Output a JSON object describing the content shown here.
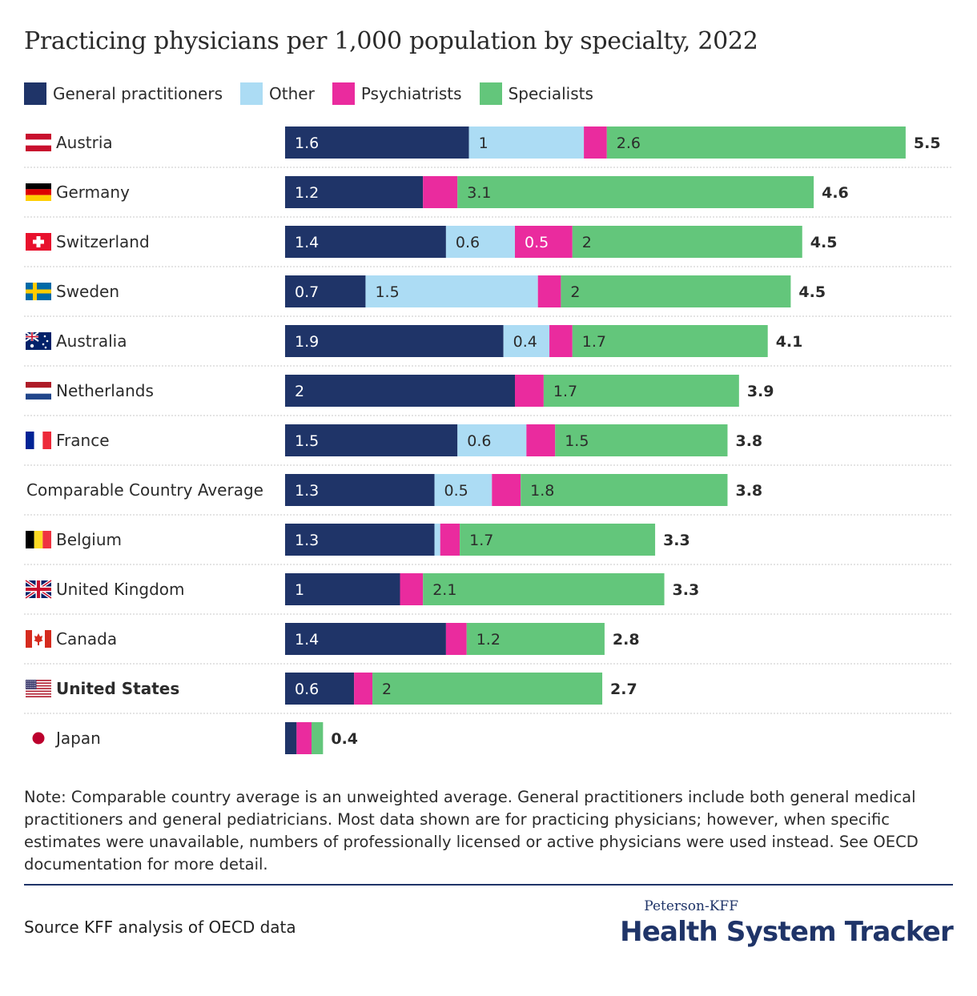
{
  "title": "Practicing physicians per 1,000 population by specialty, 2022",
  "legend": [
    {
      "label": "General practitioners",
      "color": "#1f3468"
    },
    {
      "label": "Other",
      "color": "#acdcf4"
    },
    {
      "label": "Psychiatrists",
      "color": "#ea2b9e"
    },
    {
      "label": "Specialists",
      "color": "#63c67b"
    }
  ],
  "note": "Note: Comparable country average is an unweighted average. General practitioners include both general medical practitioners and general pediatricians. Most data shown are for practicing physicians; however, when specific estimates were unavailable, numbers of professionally licensed or active physicians were used instead. See OECD documentation for more detail.",
  "source": "Source KFF analysis of OECD data",
  "brand": {
    "top": "Peterson-KFF",
    "main": "Health System Tracker"
  },
  "chart_data": {
    "type": "bar",
    "orientation": "horizontal",
    "stacked": true,
    "grid": false,
    "legend_position": "top-left",
    "categories": [
      "Austria",
      "Germany",
      "Switzerland",
      "Sweden",
      "Australia",
      "Netherlands",
      "France",
      "Comparable Country Average",
      "Belgium",
      "United Kingdom",
      "Canada",
      "United States",
      "Japan"
    ],
    "flags": [
      "austria-flag-icon",
      "germany-flag-icon",
      "switzerland-flag-icon",
      "sweden-flag-icon",
      "australia-flag-icon",
      "netherlands-flag-icon",
      "france-flag-icon",
      "",
      "belgium-flag-icon",
      "united-kingdom-flag-icon",
      "canada-flag-icon",
      "united-states-flag-icon",
      "japan-flag-icon"
    ],
    "highlight": "United States",
    "series": [
      {
        "name": "General practitioners",
        "color": "#1f3468",
        "values": [
          1.6,
          1.2,
          1.4,
          0.7,
          1.9,
          2.0,
          1.5,
          1.3,
          1.3,
          1.0,
          1.4,
          0.6,
          0.1
        ],
        "labels": [
          "1.6",
          "1.2",
          "1.4",
          "0.7",
          "1.9",
          "2",
          "1.5",
          "1.3",
          "1.3",
          "1",
          "1.4",
          "0.6",
          ""
        ]
      },
      {
        "name": "Other",
        "color": "#acdcf4",
        "values": [
          1.0,
          0,
          0.6,
          1.5,
          0.4,
          0,
          0.6,
          0.5,
          0.05,
          0,
          0,
          0,
          0
        ],
        "labels": [
          "1",
          "",
          "0.6",
          "1.5",
          "0.4",
          "",
          "0.6",
          "0.5",
          "",
          "",
          "",
          "",
          ""
        ]
      },
      {
        "name": "Psychiatrists",
        "color": "#ea2b9e",
        "values": [
          0.2,
          0.3,
          0.5,
          0.2,
          0.2,
          0.25,
          0.25,
          0.25,
          0.17,
          0.2,
          0.18,
          0.16,
          0.13
        ],
        "labels": [
          "",
          "",
          "0.5",
          "",
          "",
          "",
          "",
          "",
          "",
          "",
          "",
          "",
          ""
        ]
      },
      {
        "name": "Specialists",
        "color": "#63c67b",
        "values": [
          2.6,
          3.1,
          2.0,
          2.0,
          1.7,
          1.7,
          1.5,
          1.8,
          1.7,
          2.1,
          1.2,
          2.0,
          0.1
        ],
        "labels": [
          "2.6",
          "3.1",
          "2",
          "2",
          "1.7",
          "1.7",
          "1.5",
          "1.8",
          "1.7",
          "2.1",
          "1.2",
          "2",
          ""
        ]
      }
    ],
    "totals": [
      "5.5",
      "4.6",
      "4.5",
      "4.5",
      "4.1",
      "3.9",
      "3.8",
      "3.8",
      "3.3",
      "3.3",
      "2.8",
      "2.7",
      "0.4"
    ]
  }
}
